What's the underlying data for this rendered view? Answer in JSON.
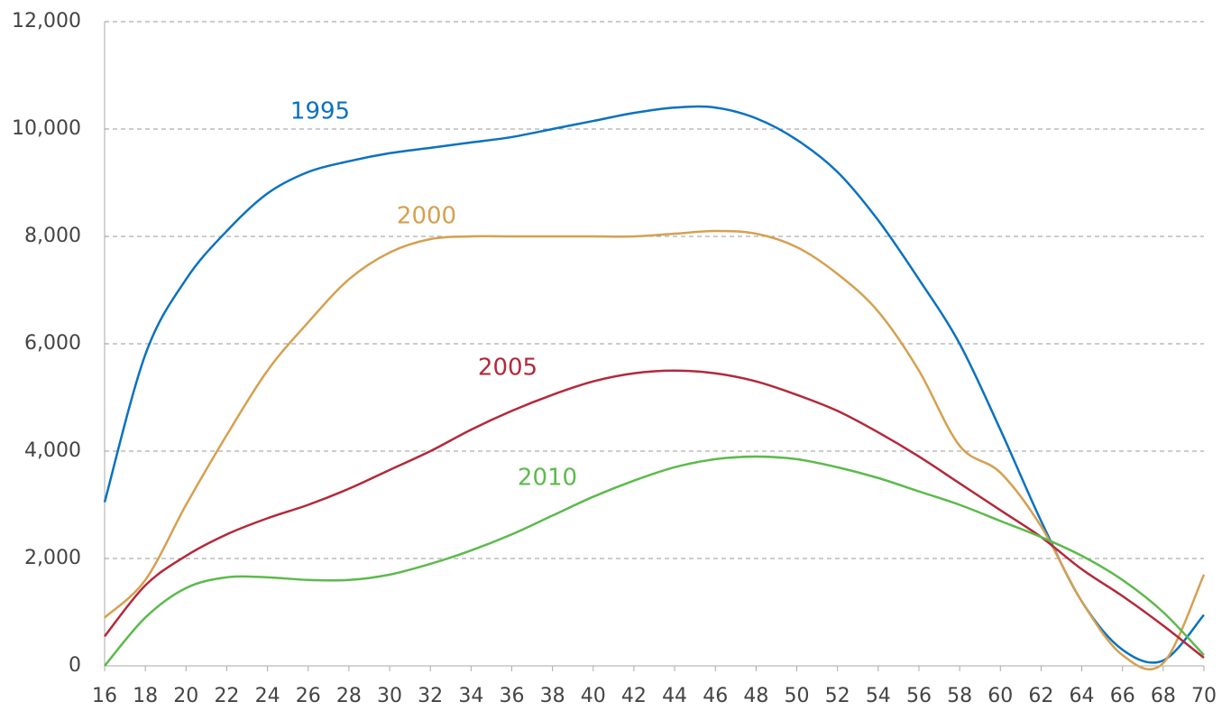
{
  "chart_data": {
    "type": "line",
    "x": [
      16,
      18,
      20,
      22,
      24,
      26,
      28,
      30,
      32,
      34,
      36,
      38,
      40,
      42,
      44,
      46,
      48,
      50,
      52,
      54,
      56,
      58,
      60,
      62,
      64,
      66,
      68,
      70
    ],
    "xlim": [
      16,
      70
    ],
    "xticks": [
      16,
      18,
      20,
      22,
      24,
      26,
      28,
      30,
      32,
      34,
      36,
      38,
      40,
      42,
      44,
      46,
      48,
      50,
      52,
      54,
      56,
      58,
      60,
      62,
      64,
      66,
      68,
      70
    ],
    "ylim": [
      0,
      12000
    ],
    "yticks": [
      0,
      {
        "value": 2000,
        "label": "2,000"
      },
      {
        "value": 4000,
        "label": "4,000"
      },
      {
        "value": 6000,
        "label": "6,000"
      },
      {
        "value": 8000,
        "label": "8,000"
      },
      {
        "value": 10000,
        "label": "10,000"
      },
      {
        "value": 12000,
        "label": "12,000"
      }
    ],
    "grid": true,
    "series": [
      {
        "name": "1995",
        "color": "#0a72c0",
        "values": [
          3050,
          5800,
          7200,
          8100,
          8800,
          9200,
          9400,
          9550,
          9650,
          9750,
          9850,
          10000,
          10150,
          10300,
          10400,
          10400,
          10200,
          9800,
          9200,
          8300,
          7200,
          6000,
          4400,
          2700,
          1200,
          300,
          100,
          950
        ]
      },
      {
        "name": "2000",
        "color": "#d6a050",
        "values": [
          900,
          1600,
          3000,
          4300,
          5500,
          6400,
          7200,
          7700,
          7950,
          8000,
          8000,
          8000,
          8000,
          8000,
          8050,
          8100,
          8050,
          7800,
          7300,
          6600,
          5500,
          4100,
          3600,
          2600,
          1200,
          200,
          50,
          1700
        ]
      },
      {
        "name": "2005",
        "color": "#b3293a",
        "values": [
          550,
          1500,
          2050,
          2450,
          2750,
          3000,
          3300,
          3650,
          4000,
          4400,
          4750,
          5050,
          5300,
          5450,
          5500,
          5450,
          5300,
          5050,
          4750,
          4350,
          3900,
          3400,
          2900,
          2400,
          1800,
          1300,
          750,
          150
        ]
      },
      {
        "name": "2010",
        "color": "#5cba4c",
        "values": [
          0,
          900,
          1450,
          1650,
          1650,
          1600,
          1600,
          1700,
          1900,
          2150,
          2450,
          2800,
          3150,
          3450,
          3700,
          3850,
          3900,
          3850,
          3700,
          3500,
          3250,
          3000,
          2700,
          2400,
          2050,
          1600,
          1000,
          200
        ]
      }
    ]
  }
}
